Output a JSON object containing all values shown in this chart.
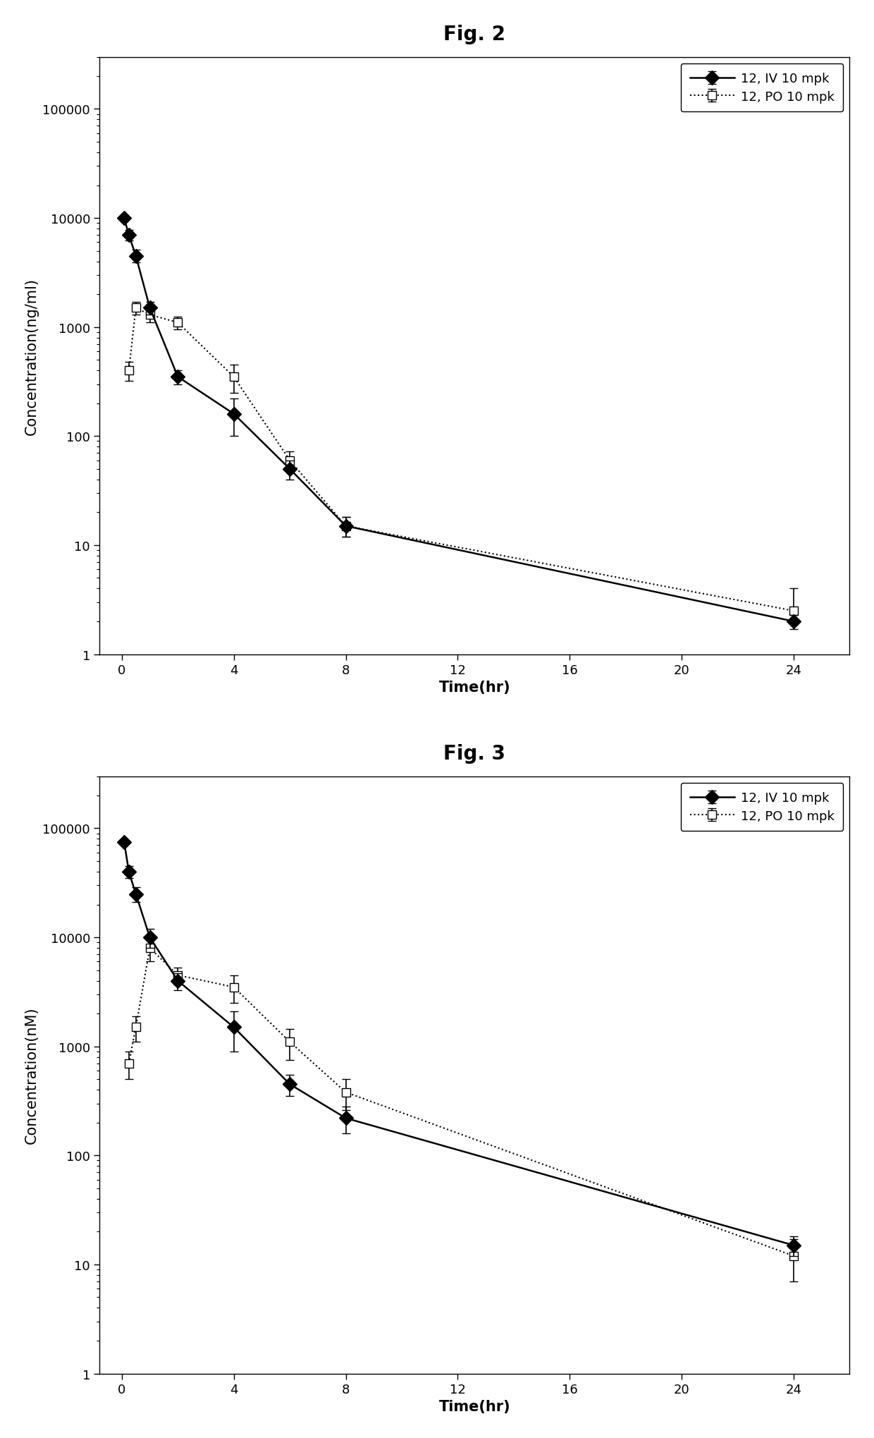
{
  "fig2": {
    "title": "Fig. 2",
    "ylabel": "Concentration(ng/ml)",
    "xlabel": "Time(hr)",
    "iv": {
      "label": "12, IV 10 mpk",
      "x": [
        0.083,
        0.25,
        0.5,
        1,
        2,
        4,
        6,
        8,
        24
      ],
      "y": [
        10000,
        7000,
        4500,
        1500,
        350,
        160,
        50,
        15,
        2
      ],
      "yerr_lo": [
        0,
        800,
        600,
        200,
        50,
        60,
        10,
        3,
        0.3
      ],
      "yerr_hi": [
        0,
        800,
        600,
        200,
        50,
        60,
        10,
        3,
        0.3
      ]
    },
    "po": {
      "label": "12, PO 10 mpk",
      "x": [
        0.25,
        0.5,
        1,
        2,
        4,
        6,
        8,
        24
      ],
      "y": [
        400,
        1500,
        1300,
        1100,
        350,
        60,
        15,
        2.5
      ],
      "yerr_lo": [
        80,
        200,
        200,
        150,
        100,
        12,
        3,
        0.5
      ],
      "yerr_hi": [
        80,
        200,
        200,
        150,
        100,
        12,
        3,
        1.5
      ]
    },
    "ylim": [
      1,
      300000
    ],
    "xlim": [
      -0.8,
      26
    ],
    "xticks": [
      0,
      4,
      8,
      12,
      16,
      20,
      24
    ],
    "yticks": [
      1,
      10,
      100,
      1000,
      10000,
      100000
    ]
  },
  "fig3": {
    "title": "Fig. 3",
    "ylabel": "Concentration(nM)",
    "xlabel": "Time(hr)",
    "iv": {
      "label": "12, IV 10 mpk",
      "x": [
        0.083,
        0.25,
        0.5,
        1,
        2,
        4,
        6,
        8,
        24
      ],
      "y": [
        75000,
        40000,
        25000,
        10000,
        4000,
        1500,
        450,
        220,
        15
      ],
      "yerr_lo": [
        0,
        5000,
        4000,
        2000,
        700,
        600,
        100,
        60,
        3
      ],
      "yerr_hi": [
        0,
        5000,
        4000,
        2000,
        700,
        600,
        100,
        60,
        3
      ]
    },
    "po": {
      "label": "12, PO 10 mpk",
      "x": [
        0.25,
        0.5,
        1,
        2,
        4,
        6,
        8,
        24
      ],
      "y": [
        700,
        1500,
        8000,
        4500,
        3500,
        1100,
        380,
        12
      ],
      "yerr_lo": [
        200,
        400,
        2000,
        800,
        1000,
        350,
        120,
        5
      ],
      "yerr_hi": [
        200,
        400,
        2000,
        800,
        1000,
        350,
        120,
        5
      ]
    },
    "ylim": [
      1,
      300000
    ],
    "xlim": [
      -0.8,
      26
    ],
    "xticks": [
      0,
      4,
      8,
      12,
      16,
      20,
      24
    ],
    "yticks": [
      1,
      10,
      100,
      1000,
      10000,
      100000
    ]
  },
  "fig_bg": "#ffffff",
  "title_fontsize": 20,
  "label_fontsize": 15,
  "tick_fontsize": 13,
  "legend_fontsize": 13
}
